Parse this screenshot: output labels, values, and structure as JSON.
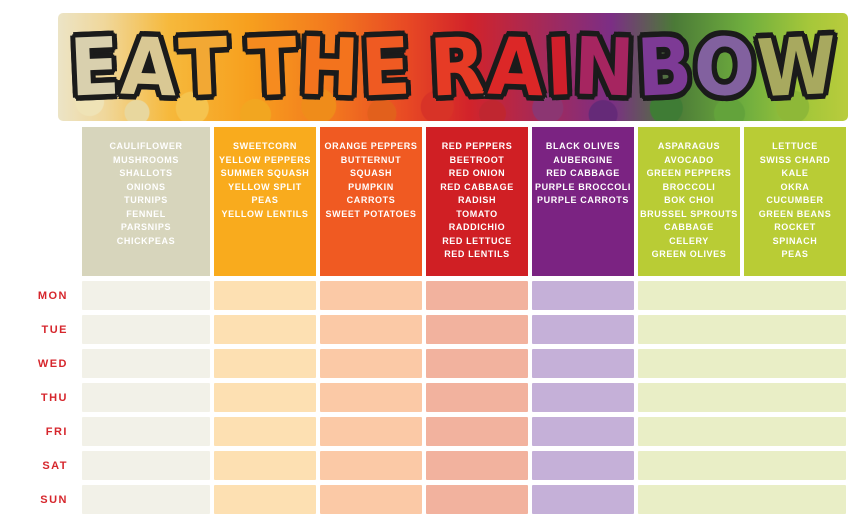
{
  "banner": {
    "title": "EAT THE RAINBOW",
    "title_letters": [
      {
        "char": "E",
        "color": "#d9d0ae"
      },
      {
        "char": "A",
        "color": "#d9c894"
      },
      {
        "char": "T",
        "color": "#f2a834"
      },
      {
        "char": " "
      },
      {
        "char": "T",
        "color": "#f68b1f"
      },
      {
        "char": "H",
        "color": "#f3731d"
      },
      {
        "char": "E",
        "color": "#ef5a22"
      },
      {
        "char": " "
      },
      {
        "char": "R",
        "color": "#e63b25"
      },
      {
        "char": "A",
        "color": "#dc2727"
      },
      {
        "char": "I",
        "color": "#d01f2b"
      },
      {
        "char": "N",
        "color": "#a62560"
      },
      {
        "char": "B",
        "color": "#7d3a95"
      },
      {
        "char": "O",
        "color": "#82619f"
      },
      {
        "char": "W",
        "color": "#a8a95f"
      }
    ]
  },
  "table": {
    "day_label_color": "#d6262c",
    "days": [
      "MON",
      "TUE",
      "WED",
      "THU",
      "FRI",
      "SAT",
      "SUN"
    ],
    "columns": [
      {
        "name": "white-group",
        "header_color": "#d7d5bc",
        "cell_color": "#f2f1e8",
        "items": [
          "CAULIFLOWER",
          "MUSHROOMS",
          "SHALLOTS",
          "ONIONS",
          "TURNIPS",
          "FENNEL",
          "PARSNIPS",
          "CHICKPEAS"
        ]
      },
      {
        "name": "yellow-group",
        "header_color": "#f9ab1d",
        "cell_color": "#fde0b2",
        "items": [
          "SWEETCORN",
          "YELLOW PEPPERS",
          "SUMMER SQUASH",
          "YELLOW SPLIT PEAS",
          "YELLOW LENTILS"
        ]
      },
      {
        "name": "orange-group",
        "header_color": "#f05a22",
        "cell_color": "#fbc9a6",
        "items": [
          "ORANGE PEPPERS",
          "BUTTERNUT",
          "SQUASH",
          "PUMPKIN",
          "CARROTS",
          "SWEET POTATOES"
        ]
      },
      {
        "name": "red-group",
        "header_color": "#d01f24",
        "cell_color": "#f2b29e",
        "items": [
          "RED PEPPERS",
          "BEETROOT",
          "RED ONION",
          "RED CABBAGE",
          "RADISH",
          "TOMATO",
          "RADDICHIO",
          "RED LETTUCE",
          "RED LENTILS"
        ]
      },
      {
        "name": "purple-group",
        "header_color": "#7b2382",
        "cell_color": "#c5b0d8",
        "items": [
          "BLACK OLIVES",
          "AUBERGINE",
          "RED CABBAGE",
          "PURPLE BROCCOLI",
          "PURPLE CARROTS"
        ]
      },
      {
        "name": "dark-green-group",
        "header_color": "#b9cc35",
        "cell_color": "#e9eec6",
        "items": [
          "ASPARAGUS",
          "AVOCADO",
          "GREEN PEPPERS",
          "BROCCOLI",
          "BOK CHOI",
          "BRUSSEL SPROUTS",
          "CABBAGE",
          "CELERY",
          "GREEN OLIVES"
        ]
      },
      {
        "name": "light-green-group",
        "header_color": "#b9cc35",
        "cell_color": "#e9eec6",
        "items": [
          "LETTUCE",
          "SWISS CHARD",
          "KALE",
          "OKRA",
          "CUCUMBER",
          "GREEN BEANS",
          "ROCKET",
          "SPINACH",
          "PEAS"
        ]
      }
    ]
  }
}
